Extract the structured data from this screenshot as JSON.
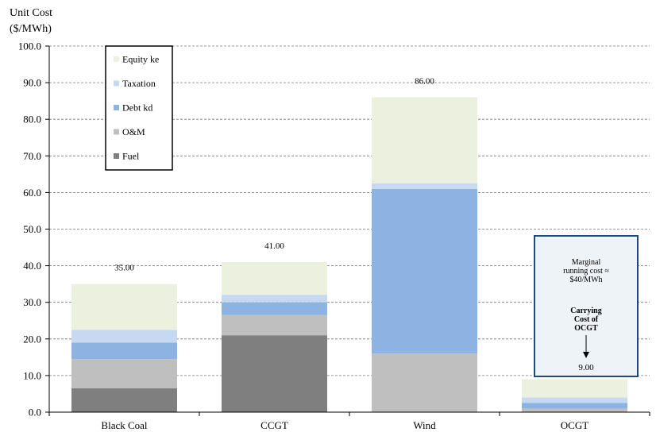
{
  "chart_data": {
    "type": "bar",
    "stacked": true,
    "ylabel_lines": [
      "Unit Cost",
      "($/MWh)"
    ],
    "ylim": [
      0,
      100
    ],
    "yticks": [
      "0.0",
      "10.0",
      "20.0",
      "30.0",
      "40.0",
      "50.0",
      "60.0",
      "70.0",
      "80.0",
      "90.0",
      "100.0"
    ],
    "grid": true,
    "legend_position": "top-left",
    "categories": [
      "Black Coal",
      "CCGT",
      "Wind",
      "OCGT"
    ],
    "series": [
      {
        "name": "Fuel",
        "color": "#7f7f7f",
        "values": [
          6.5,
          21,
          0,
          0
        ]
      },
      {
        "name": "O&M",
        "color": "#bfbfbf",
        "values": [
          8,
          5.5,
          16,
          1
        ]
      },
      {
        "name": "Debt kd",
        "color": "#8db3e2",
        "values": [
          4.5,
          3.5,
          45,
          1.5
        ]
      },
      {
        "name": "Taxation",
        "color": "#c6d9f1",
        "values": [
          3.5,
          2,
          1.5,
          1.5
        ]
      },
      {
        "name": "Equity ke",
        "color": "#ebf1de",
        "values": [
          12.5,
          9,
          23.5,
          5
        ]
      }
    ],
    "totals_labels": [
      "35.00",
      "41.00",
      "86.00",
      "9.00"
    ],
    "annotation": {
      "text_lines": [
        "Marginal",
        "running cost ≈",
        "$40/MWh"
      ],
      "bold_lines": [
        "Carrying",
        "Cost of",
        "OCGT"
      ],
      "box_color": "#1f497d",
      "box_fill": "#eef3f8"
    }
  }
}
